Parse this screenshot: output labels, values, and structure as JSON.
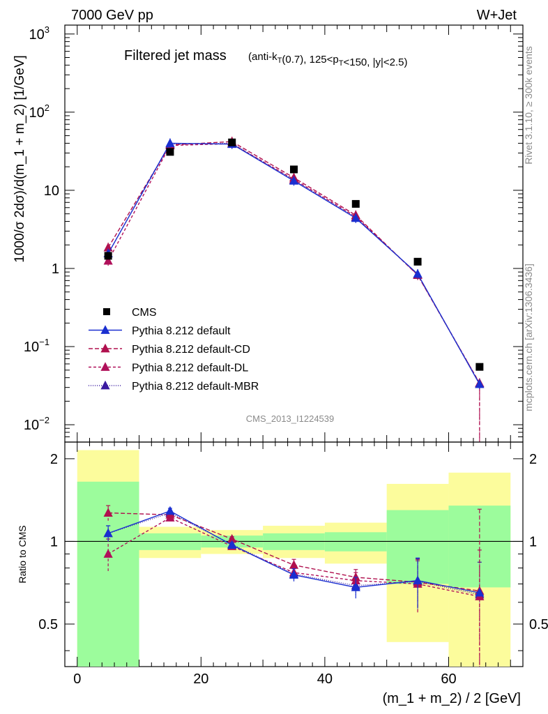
{
  "header": {
    "energy_label": "7000 GeV pp",
    "process_label": "W+Jet",
    "plot_title": "Filtered jet mass",
    "plot_subtitle": "(anti-k_T(0.7), 125<p_T<150, |y|<2.5)",
    "analysis_id": "CMS_2013_I1224539",
    "side_label_top": "Rivet 3.1.10, ≥ 300k events",
    "side_label_bottom": "mcplots.cern.ch [arXiv:1306.3436]"
  },
  "chart_data": [
    {
      "type": "line",
      "panel": "main",
      "ylabel": "1000/σ 2dσ)/d(m_1 + m_2) [1/GeV]",
      "yscale": "log",
      "ylim": [
        0.006,
        1300
      ],
      "xlim": [
        -2,
        72
      ],
      "ytick_labels": [
        {
          "value": 1000,
          "base": "10",
          "exp": "3"
        },
        {
          "value": 100,
          "base": "10",
          "exp": "2"
        },
        {
          "value": 10,
          "base": "10",
          "exp": ""
        },
        {
          "value": 1,
          "base": "1",
          "exp": ""
        },
        {
          "value": 0.1,
          "base": "10",
          "exp": "−1"
        },
        {
          "value": 0.01,
          "base": "10",
          "exp": "−2"
        }
      ],
      "legend_position": "lower-left",
      "series": [
        {
          "name": "CMS",
          "kind": "data",
          "color": "#000000",
          "x": [
            5,
            15,
            25,
            35,
            45,
            55,
            65
          ],
          "y": [
            1.45,
            31,
            41,
            18.5,
            6.7,
            1.22,
            0.055
          ]
        },
        {
          "name": "Pythia 8.212 default",
          "kind": "mc",
          "color": "#1a2fd0",
          "dash": "solid",
          "x": [
            5,
            15,
            25,
            35,
            45,
            55,
            65
          ],
          "y": [
            1.55,
            40,
            39,
            13.2,
            4.4,
            0.85,
            0.033
          ]
        },
        {
          "name": "Pythia 8.212 default-CD",
          "kind": "mc",
          "color": "#b0104e",
          "dash": "6,3",
          "x": [
            5,
            15,
            25,
            35,
            45,
            55,
            65
          ],
          "y": [
            1.85,
            38,
            42,
            14.5,
            4.8,
            0.82,
            0.034
          ]
        },
        {
          "name": "Pythia 8.212 default-DL",
          "kind": "mc",
          "color": "#b0105a",
          "dash": "4,3",
          "x": [
            5,
            15,
            25,
            35,
            45,
            55,
            65
          ],
          "y": [
            1.25,
            37.5,
            39.5,
            13.8,
            4.6,
            0.83,
            0.034
          ]
        },
        {
          "name": "Pythia 8.212 default-MBR",
          "kind": "mc",
          "color": "#3a1aa0",
          "dash": "1,2",
          "x": [
            5,
            15,
            25,
            35,
            45,
            55,
            65
          ],
          "y": [
            1.55,
            39,
            40,
            13.5,
            4.5,
            0.84,
            0.033
          ]
        }
      ]
    },
    {
      "type": "line",
      "panel": "ratio",
      "xlabel": "(m_1 + m_2) / 2 [GeV]",
      "ylabel": "Ratio to CMS",
      "yscale": "log",
      "ylim": [
        0.35,
        2.3
      ],
      "xlim": [
        -2,
        72
      ],
      "xticks": [
        0,
        20,
        40,
        60
      ],
      "yticks": [
        0.5,
        1,
        2
      ],
      "bands": {
        "x_edges": [
          0,
          10,
          20,
          30,
          40,
          50,
          60,
          70
        ],
        "inner_lo": [
          0.35,
          0.93,
          0.95,
          0.93,
          0.92,
          0.7,
          0.68
        ],
        "inner_hi": [
          1.65,
          1.07,
          1.05,
          1.07,
          1.08,
          1.3,
          1.35
        ],
        "outer_lo": [
          0.35,
          0.87,
          0.9,
          0.87,
          0.83,
          0.43,
          0.35
        ],
        "outer_hi": [
          2.15,
          1.13,
          1.1,
          1.14,
          1.17,
          1.62,
          1.78
        ]
      },
      "series": [
        {
          "name": "Pythia 8.212 default",
          "color": "#1a2fd0",
          "dash": "solid",
          "x": [
            5,
            15,
            25,
            35,
            45,
            55,
            65
          ],
          "y": [
            1.07,
            1.29,
            0.97,
            0.755,
            0.68,
            0.72,
            0.65
          ],
          "err": [
            0.07,
            0.03,
            0.02,
            0.04,
            0.06,
            0.15,
            0
          ]
        },
        {
          "name": "Pythia 8.212 default-CD",
          "color": "#b0104e",
          "dash": "6,3",
          "x": [
            5,
            15,
            25,
            35,
            45,
            55,
            65
          ],
          "y": [
            1.27,
            1.25,
            1.02,
            0.82,
            0.74,
            0.71,
            0.66
          ],
          "err": [
            0.08,
            0.03,
            0.02,
            0.04,
            0.05,
            0.15,
            0.65
          ]
        },
        {
          "name": "Pythia 8.212 default-DL",
          "color": "#b0105a",
          "dash": "4,3",
          "x": [
            5,
            15,
            25,
            35,
            45,
            55,
            65
          ],
          "y": [
            0.9,
            1.22,
            0.96,
            0.77,
            0.72,
            0.7,
            0.63
          ],
          "err": [
            0.12,
            0.03,
            0.02,
            0.04,
            0.05,
            0.15,
            0.3
          ]
        },
        {
          "name": "Pythia 8.212 default-MBR",
          "color": "#3a1aa0",
          "dash": "1,2",
          "x": [
            5,
            15,
            25,
            35,
            45,
            55,
            65
          ],
          "y": [
            1.07,
            1.27,
            0.975,
            0.76,
            0.69,
            0.715,
            0.64
          ],
          "err": [
            0.07,
            0.03,
            0.02,
            0.04,
            0.05,
            0.15,
            0.2
          ]
        }
      ]
    }
  ],
  "colors": {
    "band_inner": "#9cfc9c",
    "band_outer": "#fcfc9c",
    "axis": "#000000"
  }
}
